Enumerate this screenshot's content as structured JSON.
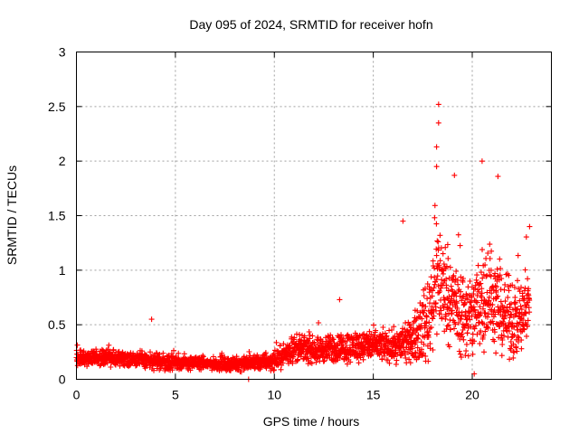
{
  "chart_data": {
    "type": "scatter",
    "title": "Day 095 of 2024, SRMTID for receiver hofn",
    "xlabel": "GPS time / hours",
    "ylabel": "SRMTID / TECUs",
    "xlim": [
      0,
      24
    ],
    "ylim": [
      0,
      3
    ],
    "xticks": [
      0,
      5,
      10,
      15,
      20
    ],
    "xtick_labels": [
      "0",
      "5",
      "10",
      "15",
      "20"
    ],
    "yticks": [
      0,
      0.5,
      1,
      1.5,
      2,
      2.5,
      3
    ],
    "ytick_labels": [
      "0",
      "0.5",
      "1",
      "1.5",
      "2",
      "2.5",
      "3"
    ],
    "grid": true,
    "marker": "+",
    "color": "#ff0000",
    "series": [
      {
        "name": "SRMTID",
        "profile": {
          "description": "Envelope of the plotted point cloud, hours vs typical SRMTID (TECU), with noise spread",
          "hours": [
            0,
            1,
            2,
            3,
            4,
            5,
            6,
            7,
            8,
            9,
            10,
            11,
            12,
            13,
            14,
            15,
            16,
            17,
            17.8,
            18.2,
            18.6,
            19,
            19.5,
            20,
            20.5,
            21,
            21.5,
            22,
            22.5,
            22.9
          ],
          "level": [
            0.2,
            0.2,
            0.19,
            0.19,
            0.16,
            0.15,
            0.15,
            0.14,
            0.14,
            0.15,
            0.17,
            0.28,
            0.27,
            0.28,
            0.3,
            0.31,
            0.3,
            0.35,
            0.55,
            1.0,
            0.8,
            0.7,
            0.6,
            0.55,
            0.8,
            0.75,
            0.6,
            0.55,
            0.55,
            0.7
          ],
          "spread": [
            0.06,
            0.06,
            0.06,
            0.06,
            0.07,
            0.06,
            0.05,
            0.05,
            0.05,
            0.06,
            0.07,
            0.1,
            0.1,
            0.11,
            0.12,
            0.12,
            0.12,
            0.15,
            0.35,
            0.5,
            0.4,
            0.35,
            0.35,
            0.35,
            0.45,
            0.4,
            0.3,
            0.3,
            0.3,
            0.3
          ]
        },
        "notable_points": [
          {
            "x": 3.8,
            "y": 0.55
          },
          {
            "x": 13.3,
            "y": 0.73
          },
          {
            "x": 16.5,
            "y": 1.45
          },
          {
            "x": 18.3,
            "y": 2.52
          },
          {
            "x": 18.3,
            "y": 2.35
          },
          {
            "x": 18.2,
            "y": 2.13
          },
          {
            "x": 18.2,
            "y": 1.95
          },
          {
            "x": 19.1,
            "y": 1.87
          },
          {
            "x": 20.5,
            "y": 2.0
          },
          {
            "x": 21.3,
            "y": 1.86
          },
          {
            "x": 22.9,
            "y": 1.4
          },
          {
            "x": 20.1,
            "y": 0.05
          },
          {
            "x": 8.7,
            "y": 0.0
          }
        ]
      }
    ]
  }
}
